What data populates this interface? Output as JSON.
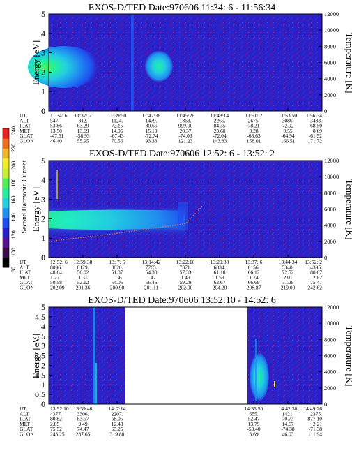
{
  "colorbar": {
    "label": "Second Harmonic Current",
    "ticks": [
      "240",
      "220",
      "200",
      "180",
      "160",
      "140",
      "120",
      "100",
      "80"
    ],
    "colors": [
      "#000000",
      "#3a0a4a",
      "#5a1290",
      "#2a22c8",
      "#1f4ff0",
      "#1f8ff0",
      "#22d0e0",
      "#22f0a0",
      "#50f050",
      "#c8f032",
      "#f0f028",
      "#f0b428",
      "#f06e1e",
      "#e81e1e"
    ]
  },
  "panels": [
    {
      "title": "EXOS-D/TED   Date:970606  11:34: 6 - 11:56:34",
      "ylabel": "Energy [eV]",
      "y2label": "Temperature [K]",
      "yticks": [
        "5",
        "4",
        "3",
        "2",
        "1",
        "0"
      ],
      "y2ticks": [
        "12000",
        "10000",
        "8000",
        "6000",
        "4000",
        "2000",
        "0"
      ],
      "row_labels": [
        "UT",
        "ALT",
        "ILAT",
        "MLT",
        "GLAT",
        "GLON"
      ],
      "columns": [
        [
          "11:34: 6",
          "547.",
          "53.86",
          "13.50",
          "-47.61",
          "46.40"
        ],
        [
          "11:37: 2",
          "812.",
          "63.29",
          "13.69",
          "-58.93",
          "55.95"
        ],
        [
          "11:39:50",
          "1124.",
          "72.15",
          "14.05",
          "-67.43",
          "70.56"
        ],
        [
          "11:42:38",
          "1479.",
          "80.66",
          "15.10",
          "-72.74",
          "93.33"
        ],
        [
          "11:45:26",
          "1863.",
          "999.00",
          "20.37",
          "-74.03",
          "121.23"
        ],
        [
          "11:48:14",
          "2265.",
          "84.35",
          "23.60",
          "-72.04",
          "143.83"
        ],
        [
          "11:51: 2",
          "2675.",
          "78.21",
          "0.28",
          "-68.63",
          "158.01"
        ],
        [
          "11:53:50",
          "3086.",
          "72.92",
          "0.55",
          "-64.94",
          "166.51"
        ],
        [
          "11:56:34",
          "3483.",
          "68.50",
          "0.69",
          "-61.52",
          "171.72"
        ]
      ]
    },
    {
      "title": "EXOS-D/TED   Date:970606  12:52: 6 - 13:52: 2",
      "ylabel": "Energy [eV]",
      "y2label": "Temperature [K]",
      "yticks": [
        "5",
        "4",
        "3",
        "2",
        "1",
        "0"
      ],
      "y2ticks": [
        "12000",
        "10000",
        "8000",
        "6000",
        "4000",
        "2000",
        "0"
      ],
      "row_labels": [
        "UT",
        "ALT",
        "ILAT",
        "MLT",
        "GLAT",
        "GLON"
      ],
      "columns": [
        [
          "12:52: 6",
          "8096.",
          "48.64",
          "1.27",
          "50.58",
          "202.09"
        ],
        [
          "12:59:38",
          "8129.",
          "50.02",
          "1.31",
          "52.12",
          "201.36"
        ],
        [
          "13: 7: 6",
          "8020.",
          "51.87",
          "1.36",
          "54.06",
          "200.98"
        ],
        [
          "13:14:42",
          "7765.",
          "54.30",
          "1.42",
          "56.46",
          "201.11"
        ],
        [
          "13:22:10",
          "7371.",
          "57.33",
          "1.49",
          "59.29",
          "202.00"
        ],
        [
          "13:29:38",
          "6834.",
          "61.18",
          "1.59",
          "62.67",
          "204.20"
        ],
        [
          "13:37: 6",
          "6156.",
          "66.12",
          "1.74",
          "66.69",
          "208.87"
        ],
        [
          "13:44:34",
          "5340.",
          "72.52",
          "2.01",
          "71.28",
          "219.00"
        ],
        [
          "13:52: 2",
          "4395.",
          "80.67",
          "2.82",
          "75.47",
          "242.62"
        ]
      ]
    },
    {
      "title": "EXOS-D/TED   Date:970606  13:52:10 - 14:52: 6",
      "ylabel": "Energy [eV]",
      "y2label": "Temperature [K]",
      "yticks": [
        "5",
        "4.5",
        "4",
        "3.5",
        "3",
        "2.5",
        "2",
        "1.5",
        "1",
        "0.5",
        "0"
      ],
      "y2ticks": [
        "12000",
        "10000",
        "8000",
        "6000",
        "4000",
        "2000",
        "0"
      ],
      "row_labels": [
        "UT",
        "ALT",
        "ILAT",
        "MLT",
        "GLAT",
        "GLON"
      ],
      "columns": [
        [
          "13:52:10",
          "4377.",
          "80.82",
          "2.85",
          "75.52",
          "243.25"
        ],
        [
          "13:59:46",
          "3306.",
          "83.57",
          "9.49",
          "74.47",
          "287.65"
        ],
        [
          "14: 7:14",
          "2207.",
          "68.05",
          "12.43",
          "63.25",
          "319.88"
        ],
        [
          "",
          "",
          "",
          "",
          "",
          ""
        ],
        [
          "",
          "",
          "",
          "",
          "",
          ""
        ],
        [
          "",
          "",
          "",
          "",
          "",
          ""
        ],
        [
          "14:35:50",
          "655.",
          "52.47",
          "13.79",
          "-53.40",
          "3.69"
        ],
        [
          "14:42:38",
          "1421.",
          "70.73",
          "14.67",
          "-74.38",
          "46.03"
        ],
        [
          "14:49:26",
          "2375.",
          "877.10",
          "2.21",
          "-71.38",
          "111.94"
        ]
      ]
    }
  ],
  "chart_data": [
    {
      "type": "heatmap",
      "title": "EXOS-D/TED   Date:970606  11:34: 6 - 11:56:34",
      "xlabel": "UT",
      "ylabel": "Energy [eV]",
      "y2label": "Temperature [K]",
      "ylim": [
        0,
        5
      ],
      "y2lim": [
        0,
        12000
      ],
      "x_ticks": [
        "11:34: 6",
        "11:37: 2",
        "11:39:50",
        "11:42:38",
        "11:45:26",
        "11:48:14",
        "11:51: 2",
        "11:53:50",
        "11:56:34"
      ],
      "features": [
        {
          "ut_range": [
            "11:34: 6",
            "11:37: 2"
          ],
          "energy_range": [
            0.8,
            3.5
          ],
          "peak_energy": 2.3,
          "intensity": "high"
        },
        {
          "ut_range": [
            "11:41:40",
            "11:43:30"
          ],
          "energy_range": [
            1.6,
            3.0
          ],
          "peak_energy": 2.4,
          "intensity": "moderate"
        },
        {
          "ut_range": [
            "11:39:20",
            "11:39:50"
          ],
          "energy_range": [
            0,
            5
          ],
          "intensity": "low"
        }
      ]
    },
    {
      "type": "heatmap",
      "title": "EXOS-D/TED   Date:970606  12:52: 6 - 13:52: 2",
      "xlabel": "UT",
      "ylabel": "Energy [eV]",
      "y2label": "Temperature [K]",
      "ylim": [
        0,
        5
      ],
      "y2lim": [
        0,
        12000
      ],
      "x_ticks": [
        "12:52: 6",
        "12:59:38",
        "13: 7: 6",
        "13:14:42",
        "13:22:10",
        "13:29:38",
        "13:37: 6",
        "13:44:34",
        "13:52: 2"
      ],
      "features": [
        {
          "ut_range": [
            "12:52: 6",
            "13:26:00"
          ],
          "energy_range": [
            1.4,
            3.2
          ],
          "peak_energy": 2.3,
          "intensity": "high"
        }
      ],
      "temperature_series": {
        "x": [
          "12:52: 6",
          "13:07: 6",
          "13:22:10",
          "13:26:00"
        ],
        "y": [
          2000,
          3000,
          4200,
          6500
        ]
      }
    },
    {
      "type": "heatmap",
      "title": "EXOS-D/TED   Date:970606  13:52:10 - 14:52: 6",
      "xlabel": "UT",
      "ylabel": "Energy [eV]",
      "y2label": "Temperature [K]",
      "ylim": [
        0,
        5
      ],
      "y2lim": [
        0,
        12000
      ],
      "x_ticks": [
        "13:52:10",
        "13:59:46",
        "14: 7:14",
        "",
        "",
        "",
        "14:35:50",
        "14:42:38",
        "14:49:26"
      ],
      "data_gap": [
        "14:09:00",
        "14:35:50"
      ],
      "features": [
        {
          "ut_range": [
            "14:02:00",
            "14:03:00"
          ],
          "energy_range": [
            0,
            5
          ],
          "intensity": "moderate"
        },
        {
          "ut_range": [
            "14:36:00",
            "14:38:30"
          ],
          "energy_range": [
            0.5,
            3.0
          ],
          "peak_energy": 1.2,
          "intensity": "high"
        }
      ]
    }
  ]
}
